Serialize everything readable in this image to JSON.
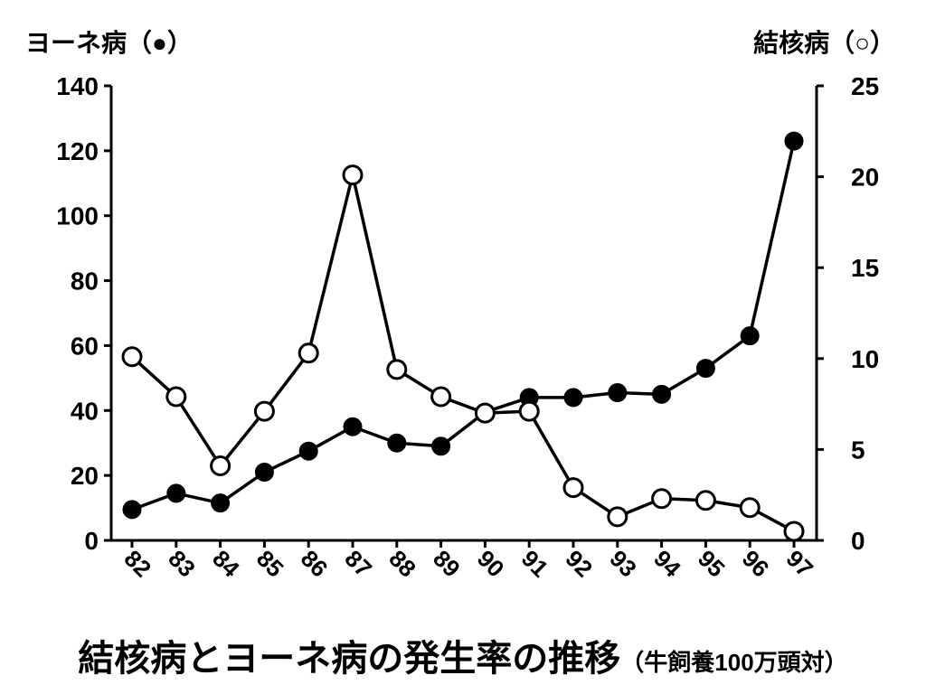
{
  "chart_data": {
    "type": "line",
    "title": "結核病とヨーネ病の発生率の推移",
    "subtitle": "（牛飼養100万頭対）",
    "x": [
      "82",
      "83",
      "84",
      "85",
      "86",
      "87",
      "88",
      "89",
      "90",
      "91",
      "92",
      "93",
      "94",
      "95",
      "96",
      "97"
    ],
    "series": [
      {
        "name": "ヨーネ病（●）",
        "axis": "left",
        "marker": "filled-circle",
        "values": [
          9.5,
          14.5,
          11.5,
          21,
          27.5,
          35,
          30,
          29,
          39.5,
          44,
          44,
          45.5,
          45,
          53,
          63,
          123
        ]
      },
      {
        "name": "結核病（○）",
        "axis": "right",
        "marker": "open-circle",
        "values": [
          10.1,
          7.9,
          4.1,
          7.1,
          10.3,
          20.1,
          9.4,
          7.9,
          7.0,
          7.1,
          2.9,
          1.3,
          2.3,
          2.2,
          1.8,
          0.5
        ]
      }
    ],
    "y_left": {
      "label": "ヨーネ病（●）",
      "ylim": [
        0,
        140
      ],
      "ticks": [
        0,
        20,
        40,
        60,
        80,
        100,
        120,
        140
      ]
    },
    "y_right": {
      "label": "結核病（○）",
      "ylim": [
        0,
        25
      ],
      "ticks": [
        0,
        5,
        10,
        15,
        20,
        25
      ]
    },
    "grid": false,
    "legend": "none",
    "colors": {
      "line": "#000000",
      "background": "#ffffff"
    }
  }
}
